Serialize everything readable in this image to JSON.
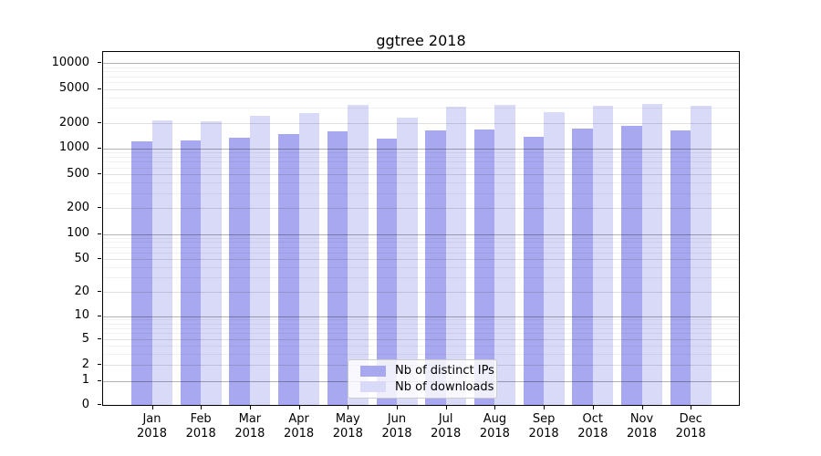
{
  "chart_data": {
    "type": "bar",
    "title": "ggtree 2018",
    "categories": [
      "Jan",
      "Feb",
      "Mar",
      "Apr",
      "May",
      "Jun",
      "Jul",
      "Aug",
      "Sep",
      "Oct",
      "Nov",
      "Dec"
    ],
    "x_tick_line2": "2018",
    "series": [
      {
        "name": "Nb of distinct IPs",
        "color": "#a8a8f0",
        "values": [
          1210,
          1240,
          1350,
          1470,
          1580,
          1320,
          1650,
          1670,
          1370,
          1710,
          1870,
          1650
        ]
      },
      {
        "name": "Nb of downloads",
        "color": "#d9d9f8",
        "values": [
          2170,
          2120,
          2430,
          2610,
          3300,
          2310,
          3120,
          3270,
          2680,
          3220,
          3380,
          3160
        ]
      }
    ],
    "y_ticks": [
      0,
      1,
      2,
      5,
      10,
      20,
      50,
      100,
      200,
      500,
      1000,
      2000,
      5000,
      10000
    ],
    "y_scale": "symlog",
    "ylim": [
      0,
      13000
    ],
    "grid": true,
    "legend_position": "lower center"
  }
}
